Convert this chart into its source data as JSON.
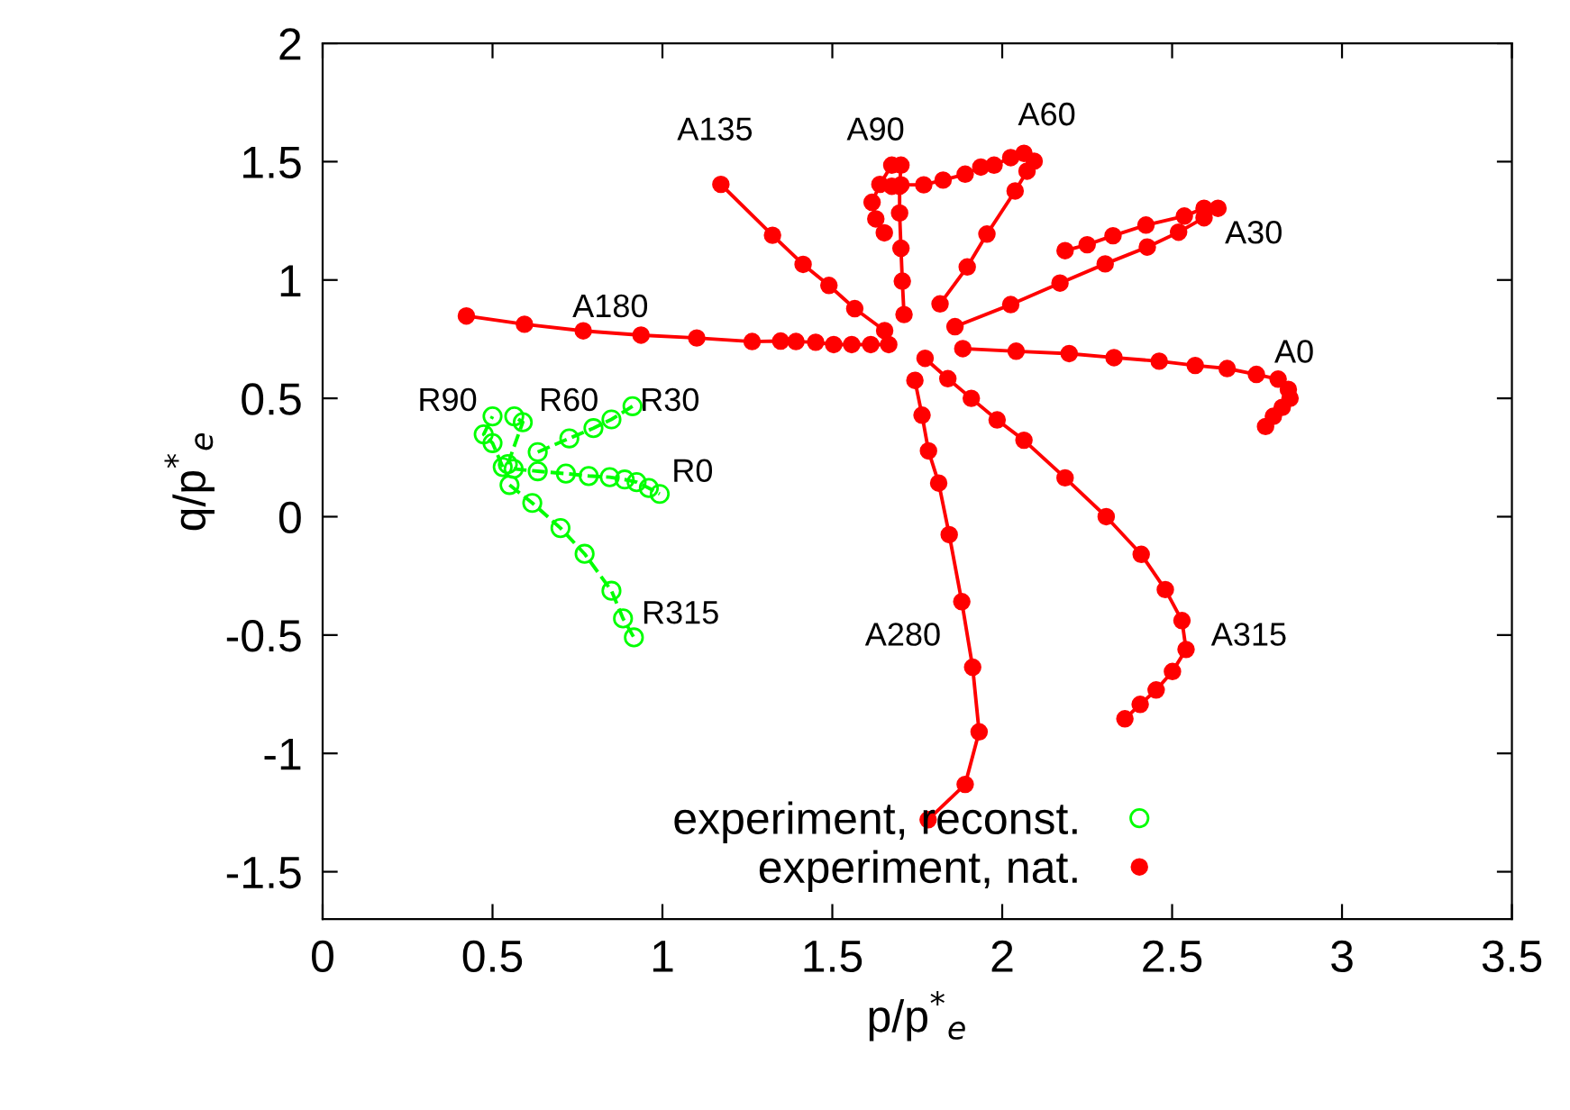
{
  "chart_data": {
    "type": "line",
    "xlabel": "p/p$^{*}$$_{e}$",
    "ylabel": "q/p$^{*}$$_{e}$",
    "xlim": [
      0,
      3.5
    ],
    "ylim": [
      -1.7,
      2
    ],
    "xticks": [
      0,
      0.5,
      1,
      1.5,
      2,
      2.5,
      3,
      3.5
    ],
    "yticks": [
      -1.5,
      -1,
      -0.5,
      0,
      0.5,
      1,
      1.5,
      2
    ],
    "grid": false,
    "legend": "bottom",
    "series": [
      {
        "name": "experiment, reconst.",
        "color": "#00ff00",
        "marker": "circle",
        "line_style": "dashed",
        "x": [
          0.562,
          0.633,
          0.716,
          0.783,
          0.845,
          0.889,
          0.924,
          0.96,
          0.992,
          null,
          0.633,
          0.726,
          0.797,
          0.85,
          0.912,
          null,
          0.545,
          0.589,
          0.564,
          null,
          0.53,
          0.5,
          0.474,
          0.5,
          null,
          0.55,
          0.617,
          0.7,
          0.771,
          0.85,
          0.884,
          0.916
        ],
        "values": [
          0.202,
          0.192,
          0.182,
          0.172,
          0.167,
          0.157,
          0.146,
          0.121,
          0.096,
          null,
          0.273,
          0.331,
          0.374,
          0.411,
          0.467,
          null,
          0.222,
          0.399,
          0.424,
          null,
          0.21,
          0.311,
          0.348,
          0.424,
          null,
          0.134,
          0.058,
          -0.048,
          -0.157,
          -0.313,
          -0.43,
          -0.51
        ]
      },
      {
        "name": "experiment, nat.",
        "color": "#ff0000",
        "marker": "circle",
        "line_style": "solid",
        "x": [
          0.423,
          0.594,
          0.767,
          0.937,
          1.101,
          1.264,
          1.348,
          1.393,
          1.451,
          1.504,
          1.557,
          1.613,
          1.666,
          null,
          1.172,
          1.324,
          1.414,
          1.49,
          1.566,
          1.654,
          null,
          1.711,
          1.706,
          1.702,
          1.698,
          1.698,
          1.702,
          1.675,
          1.64,
          1.617,
          1.628,
          1.653,
          null,
          1.817,
          1.897,
          1.955,
          2.038,
          2.073,
          2.094,
          2.064,
          2.025,
          1.976,
          1.937,
          1.891,
          1.826,
          1.769,
          1.702,
          1.675,
          null,
          1.861,
          2.025,
          2.17,
          2.303,
          2.427,
          2.519,
          2.594,
          2.635,
          2.594,
          2.536,
          2.423,
          2.326,
          2.25,
          2.185,
          null,
          1.884,
          2.041,
          2.197,
          2.329,
          2.462,
          2.568,
          2.662,
          2.748,
          2.812,
          2.842,
          2.847,
          2.824,
          2.798,
          2.775,
          null,
          1.773,
          1.84,
          1.909,
          1.985,
          2.064,
          2.185,
          2.306,
          2.409,
          2.48,
          2.529,
          2.541,
          2.501,
          2.453,
          2.406,
          2.361,
          null,
          1.743,
          1.764,
          1.783,
          1.813,
          1.844,
          1.881,
          1.913,
          1.932,
          1.891,
          1.782
        ],
        "values": [
          0.848,
          0.813,
          0.785,
          0.767,
          0.755,
          0.74,
          0.742,
          0.74,
          0.737,
          0.727,
          0.727,
          0.727,
          0.727,
          null,
          1.404,
          1.189,
          1.066,
          0.977,
          0.879,
          0.786,
          null,
          0.854,
          0.995,
          1.134,
          1.283,
          1.396,
          1.485,
          1.485,
          1.404,
          1.328,
          1.258,
          1.199,
          null,
          0.899,
          1.055,
          1.194,
          1.376,
          1.46,
          1.502,
          1.535,
          1.517,
          1.485,
          1.477,
          1.447,
          1.422,
          1.402,
          1.402,
          1.396,
          null,
          0.803,
          0.896,
          0.987,
          1.068,
          1.139,
          1.202,
          1.263,
          1.303,
          1.303,
          1.27,
          1.232,
          1.187,
          1.149,
          1.124,
          null,
          0.71,
          0.699,
          0.689,
          0.672,
          0.657,
          0.639,
          0.626,
          0.601,
          0.581,
          0.538,
          0.5,
          0.462,
          0.424,
          0.381,
          null,
          0.669,
          0.583,
          0.5,
          0.409,
          0.323,
          0.164,
          0.0,
          -0.159,
          -0.308,
          -0.439,
          -0.561,
          -0.654,
          -0.732,
          -0.793,
          -0.854,
          null,
          0.576,
          0.429,
          0.278,
          0.142,
          -0.076,
          -0.359,
          -0.636,
          -0.909,
          -1.131,
          -1.28
        ]
      }
    ],
    "annotations": [
      "A135",
      "A90",
      "A60",
      "A30",
      "A0",
      "A315",
      "A280",
      "A180",
      "R90",
      "R60",
      "R30",
      "R0",
      "R315"
    ]
  }
}
